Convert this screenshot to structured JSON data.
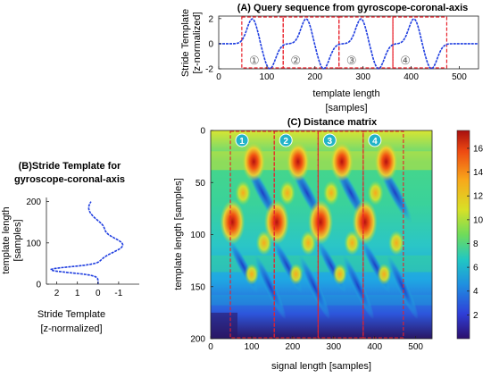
{
  "chart_data": [
    {
      "id": "A",
      "type": "line",
      "title": "(A) Query sequence from gyroscope-coronal-axis",
      "xlabel_line1": "template length",
      "xlabel_line2": "[samples]",
      "ylabel_line1": "Stride Template",
      "ylabel_line2": "[z-normalized]",
      "xlim": [
        0,
        540
      ],
      "ylim": [
        -2,
        2.2
      ],
      "xticks": [
        "0",
        "100",
        "200",
        "300",
        "400",
        "500"
      ],
      "yticks": [
        "2",
        "0",
        "-2"
      ],
      "series_color": "#1f3ee0",
      "stride_x_ranges": [
        [
          48,
          134
        ],
        [
          134,
          250
        ],
        [
          250,
          362
        ],
        [
          362,
          474
        ]
      ],
      "stride_labels": [
        "①",
        "②",
        "③",
        "④"
      ],
      "box_color": "#e8202a"
    },
    {
      "id": "B",
      "type": "line",
      "title_line1": "(B)Stride Template for",
      "title_line2": "gyroscope-coronal-axis",
      "xlabel_line1": "Stride Template",
      "xlabel_line2": "[z-normalized]",
      "ylabel_line1": "template length",
      "ylabel_line2": "[samples]",
      "xlim": [
        2.5,
        -2.0
      ],
      "ylim": [
        0,
        210
      ],
      "xticks": [
        "2",
        "1",
        "0",
        "-1"
      ],
      "yticks": [
        "200",
        "100",
        "0"
      ],
      "series_color": "#1f3ee0"
    },
    {
      "id": "C",
      "type": "heatmap",
      "title": "(C) Distance matrix",
      "xlabel": "signal length [samples]",
      "ylabel": "template length [samples]",
      "xlim": [
        0,
        540
      ],
      "ylim": [
        200,
        0
      ],
      "xticks": [
        "0",
        "100",
        "200",
        "300",
        "400",
        "500"
      ],
      "yticks": [
        "0",
        "50",
        "100",
        "150",
        "200"
      ],
      "colorbar_ticks": [
        "16",
        "14",
        "12",
        "10",
        "8",
        "6",
        "4",
        "2"
      ],
      "colorbar_range": [
        0,
        17.5
      ],
      "stride_x_ranges": [
        [
          48,
          155
        ],
        [
          155,
          262
        ],
        [
          262,
          372
        ],
        [
          372,
          470
        ]
      ],
      "stride_labels": [
        "1",
        "2",
        "3",
        "4"
      ],
      "badge_color": "#22b3c8",
      "box_color": "#e8202a"
    }
  ]
}
